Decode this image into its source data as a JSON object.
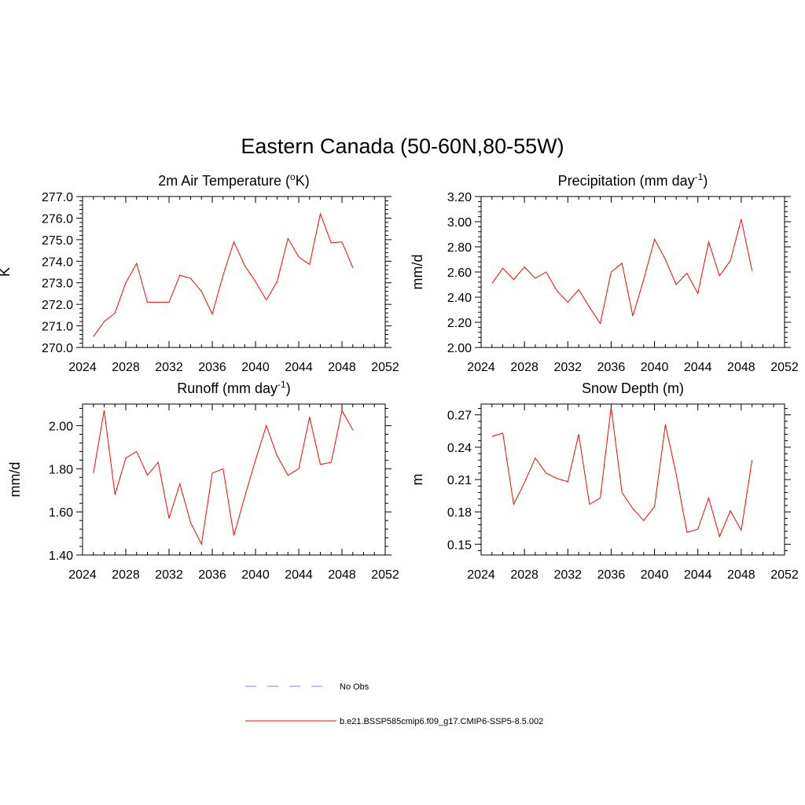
{
  "title": "Eastern Canada (50-60N,80-55W)",
  "chart_data": [
    {
      "type": "line",
      "title": "2m Air Temperature (°K)",
      "title_parts": [
        "2m Air Temperature (",
        "o",
        "K)"
      ],
      "title_superscript": "o",
      "ylabel": "K",
      "xlim": [
        2024,
        2052
      ],
      "ylim": [
        270.0,
        277.0
      ],
      "xticks": [
        2024,
        2028,
        2032,
        2036,
        2040,
        2044,
        2048,
        2052
      ],
      "yticks": [
        "270.0",
        "271.0",
        "272.0",
        "273.0",
        "274.0",
        "275.0",
        "276.0",
        "277.0"
      ],
      "x": [
        2025,
        2026,
        2027,
        2028,
        2029,
        2030,
        2031,
        2032,
        2033,
        2034,
        2035,
        2036,
        2037,
        2038,
        2039,
        2040,
        2041,
        2042,
        2043,
        2044,
        2045,
        2046,
        2047,
        2048,
        2049
      ],
      "series": [
        {
          "name": "b.e21.BSSP585cmip6.f09_g17.CMIP6-SSP5-8.5.002",
          "values": [
            270.5,
            271.2,
            271.6,
            273.0,
            273.9,
            272.1,
            272.1,
            272.1,
            273.35,
            273.2,
            272.6,
            271.55,
            273.35,
            274.9,
            273.8,
            273.05,
            272.2,
            273.05,
            275.05,
            274.2,
            273.85,
            276.2,
            274.85,
            274.9,
            273.7
          ]
        }
      ]
    },
    {
      "type": "line",
      "title": "Precipitation (mm day-1)",
      "title_parts": [
        "Precipitation (mm day",
        "-1",
        ")"
      ],
      "title_superscript": "-1",
      "ylabel": "mm/d",
      "xlim": [
        2024,
        2052
      ],
      "ylim": [
        2.0,
        3.2
      ],
      "xticks": [
        2024,
        2028,
        2032,
        2036,
        2040,
        2044,
        2048,
        2052
      ],
      "yticks": [
        "2.00",
        "2.20",
        "2.40",
        "2.60",
        "2.80",
        "3.00",
        "3.20"
      ],
      "x": [
        2025,
        2026,
        2027,
        2028,
        2029,
        2030,
        2031,
        2032,
        2033,
        2034,
        2035,
        2036,
        2037,
        2038,
        2039,
        2040,
        2041,
        2042,
        2043,
        2044,
        2045,
        2046,
        2047,
        2048,
        2049
      ],
      "series": [
        {
          "name": "b.e21.BSSP585cmip6.f09_g17.CMIP6-SSP5-8.5.002",
          "values": [
            2.51,
            2.63,
            2.54,
            2.64,
            2.55,
            2.6,
            2.45,
            2.36,
            2.46,
            2.32,
            2.19,
            2.6,
            2.67,
            2.25,
            2.54,
            2.86,
            2.7,
            2.5,
            2.59,
            2.43,
            2.84,
            2.57,
            2.69,
            3.02,
            2.61
          ]
        }
      ]
    },
    {
      "type": "line",
      "title": "Runoff (mm day-1)",
      "title_parts": [
        "Runoff (mm day",
        "-1",
        ")"
      ],
      "title_superscript": "-1",
      "ylabel": "mm/d",
      "xlim": [
        2024,
        2052
      ],
      "ylim": [
        1.4,
        2.1
      ],
      "xticks": [
        2024,
        2028,
        2032,
        2036,
        2040,
        2044,
        2048,
        2052
      ],
      "yticks": [
        "1.40",
        "1.60",
        "1.80",
        "2.00"
      ],
      "x": [
        2025,
        2026,
        2027,
        2028,
        2029,
        2030,
        2031,
        2032,
        2033,
        2034,
        2035,
        2036,
        2037,
        2038,
        2039,
        2040,
        2041,
        2042,
        2043,
        2044,
        2045,
        2046,
        2047,
        2048,
        2049
      ],
      "series": [
        {
          "name": "b.e21.BSSP585cmip6.f09_g17.CMIP6-SSP5-8.5.002",
          "values": [
            1.78,
            2.07,
            1.68,
            1.85,
            1.88,
            1.77,
            1.83,
            1.57,
            1.73,
            1.55,
            1.45,
            1.78,
            1.8,
            1.49,
            1.67,
            1.84,
            2.0,
            1.86,
            1.77,
            1.8,
            2.04,
            1.82,
            1.83,
            2.07,
            1.98
          ]
        }
      ]
    },
    {
      "type": "line",
      "title": "Snow Depth (m)",
      "title_parts": [
        "Snow Depth (m)",
        "",
        ""
      ],
      "title_superscript": "",
      "ylabel": "m",
      "xlim": [
        2024,
        2052
      ],
      "ylim": [
        0.14,
        0.28
      ],
      "xticks": [
        2024,
        2028,
        2032,
        2036,
        2040,
        2044,
        2048,
        2052
      ],
      "yticks": [
        "0.15",
        "0.18",
        "0.21",
        "0.24",
        "0.27"
      ],
      "x": [
        2025,
        2026,
        2027,
        2028,
        2029,
        2030,
        2031,
        2032,
        2033,
        2034,
        2035,
        2036,
        2037,
        2038,
        2039,
        2040,
        2041,
        2042,
        2043,
        2044,
        2045,
        2046,
        2047,
        2048,
        2049
      ],
      "series": [
        {
          "name": "b.e21.BSSP585cmip6.f09_g17.CMIP6-SSP5-8.5.002",
          "values": [
            0.25,
            0.253,
            0.187,
            0.207,
            0.23,
            0.216,
            0.211,
            0.208,
            0.252,
            0.187,
            0.193,
            0.277,
            0.198,
            0.183,
            0.172,
            0.185,
            0.261,
            0.215,
            0.161,
            0.164,
            0.193,
            0.157,
            0.181,
            0.163,
            0.228
          ]
        }
      ]
    }
  ],
  "legend": {
    "items": [
      {
        "label": "No Obs",
        "color": "#9999ff",
        "style": "dashed"
      },
      {
        "label": "b.e21.BSSP585cmip6.f09_g17.CMIP6-SSP5-8.5.002",
        "color": "#ff0000",
        "style": "solid"
      }
    ]
  },
  "colors": {
    "series": "#ff0000",
    "obs": "#9999ff",
    "axis": "#000000"
  }
}
